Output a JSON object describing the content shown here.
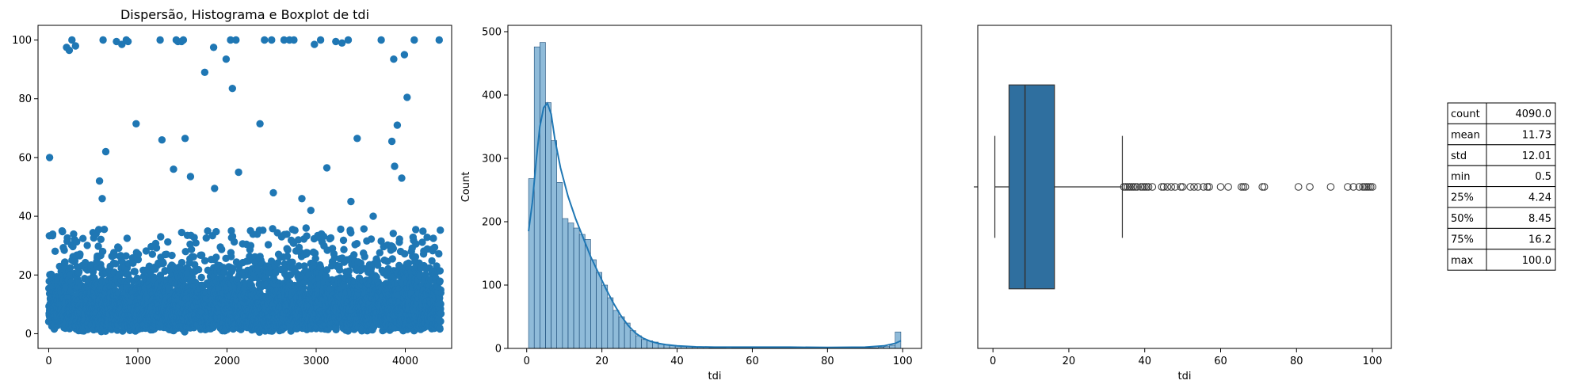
{
  "chart_data": [
    {
      "type": "scatter",
      "title": "Dispersão, Histograma e Boxplot de tdi",
      "xlabel": "",
      "ylabel": "",
      "xlim": [
        -120,
        4520
      ],
      "ylim": [
        -5,
        105
      ],
      "xticks": [
        0,
        1000,
        2000,
        3000,
        4000
      ],
      "yticks": [
        0,
        20,
        40,
        60,
        80,
        100
      ],
      "n_points": 4090,
      "color": "#1f77b4",
      "high_points": [
        [
          10,
          60
        ],
        [
          150,
          35
        ],
        [
          200,
          97.5
        ],
        [
          230,
          96.5
        ],
        [
          260,
          100
        ],
        [
          300,
          98
        ],
        [
          570,
          52
        ],
        [
          600,
          46
        ],
        [
          610,
          100
        ],
        [
          640,
          62
        ],
        [
          760,
          99.5
        ],
        [
          820,
          98.5
        ],
        [
          870,
          100
        ],
        [
          890,
          99.5
        ],
        [
          980,
          71.5
        ],
        [
          1250,
          100
        ],
        [
          1270,
          66
        ],
        [
          1400,
          56
        ],
        [
          1430,
          100
        ],
        [
          1450,
          99.5
        ],
        [
          1490,
          99.5
        ],
        [
          1510,
          100
        ],
        [
          1530,
          66.5
        ],
        [
          1590,
          53.5
        ],
        [
          1750,
          89
        ],
        [
          1850,
          97.5
        ],
        [
          1860,
          49.5
        ],
        [
          1990,
          93.5
        ],
        [
          2040,
          100
        ],
        [
          2060,
          83.5
        ],
        [
          2100,
          100
        ],
        [
          2130,
          55
        ],
        [
          2370,
          71.5
        ],
        [
          2420,
          100
        ],
        [
          2500,
          100
        ],
        [
          2520,
          48
        ],
        [
          2640,
          100
        ],
        [
          2700,
          100
        ],
        [
          2750,
          100
        ],
        [
          2840,
          46
        ],
        [
          2940,
          42
        ],
        [
          2980,
          98.5
        ],
        [
          3050,
          100
        ],
        [
          3120,
          56.5
        ],
        [
          3220,
          99.5
        ],
        [
          3290,
          99
        ],
        [
          3360,
          100
        ],
        [
          3390,
          45
        ],
        [
          3460,
          66.5
        ],
        [
          3640,
          40
        ],
        [
          3730,
          100
        ],
        [
          3850,
          65.5
        ],
        [
          3870,
          93.5
        ],
        [
          3880,
          57
        ],
        [
          3910,
          71
        ],
        [
          3960,
          53
        ],
        [
          3990,
          95
        ],
        [
          4020,
          80.5
        ],
        [
          4100,
          100
        ],
        [
          4380,
          100
        ]
      ]
    },
    {
      "type": "bar",
      "title": "",
      "xlabel": "tdi",
      "ylabel": "Count",
      "xlim": [
        -5,
        105
      ],
      "ylim": [
        0,
        510
      ],
      "xticks": [
        0,
        20,
        40,
        60,
        80,
        100
      ],
      "yticks": [
        0,
        100,
        200,
        300,
        400,
        500
      ],
      "bin_width": 1.5,
      "bin_start": 0.5,
      "counts": [
        268,
        476,
        483,
        388,
        328,
        262,
        205,
        198,
        190,
        180,
        172,
        140,
        120,
        100,
        80,
        60,
        50,
        40,
        28,
        20,
        14,
        12,
        10,
        7,
        6,
        5,
        4,
        3,
        3,
        2,
        2,
        2,
        1,
        1,
        1,
        2,
        1,
        1,
        1,
        1,
        1,
        1,
        1,
        1,
        1,
        1,
        1,
        1,
        1,
        1,
        1,
        1,
        1,
        1,
        1,
        1,
        1,
        1,
        1,
        1,
        1,
        1,
        2,
        3,
        5,
        26
      ],
      "kde": [
        [
          0.5,
          185
        ],
        [
          1.5,
          230
        ],
        [
          2.5,
          295
        ],
        [
          3.5,
          350
        ],
        [
          4.5,
          380
        ],
        [
          5.5,
          387
        ],
        [
          6.5,
          370
        ],
        [
          7.5,
          330
        ],
        [
          9,
          285
        ],
        [
          11,
          240
        ],
        [
          13,
          205
        ],
        [
          15,
          175
        ],
        [
          17,
          145
        ],
        [
          19,
          120
        ],
        [
          21,
          95
        ],
        [
          23,
          72
        ],
        [
          25,
          52
        ],
        [
          27,
          36
        ],
        [
          29,
          24
        ],
        [
          31,
          16
        ],
        [
          33,
          11
        ],
        [
          35,
          8
        ],
        [
          37,
          6
        ],
        [
          40,
          4
        ],
        [
          45,
          2.5
        ],
        [
          50,
          2
        ],
        [
          60,
          2
        ],
        [
          70,
          2
        ],
        [
          80,
          1.5
        ],
        [
          90,
          2
        ],
        [
          95,
          4
        ],
        [
          98,
          8
        ],
        [
          99.5,
          12
        ]
      ],
      "bar_color": "#1f77b4",
      "bar_alpha": 0.5
    },
    {
      "type": "box",
      "title": "",
      "xlabel": "tdi",
      "ylabel": "",
      "xlim": [
        -4,
        105
      ],
      "xticks": [
        0,
        20,
        40,
        60,
        80,
        100
      ],
      "whisker_low": 0.5,
      "q1": 4.24,
      "median": 8.45,
      "q3": 16.2,
      "whisker_high": 34.1,
      "outliers": [
        34.5,
        35,
        35.5,
        36,
        36.5,
        37,
        37.5,
        38,
        39,
        39.5,
        40,
        40.5,
        41,
        42,
        44.5,
        45,
        46,
        47,
        48,
        49.5,
        50,
        52,
        53,
        54,
        55.5,
        56.5,
        57,
        60,
        62,
        65.5,
        66,
        66.5,
        71,
        71.5,
        80.5,
        83.5,
        89,
        93.5,
        95,
        96.5,
        97.5,
        98,
        98.5,
        99,
        99.5,
        100
      ],
      "box_color": "#2f6f9f"
    }
  ],
  "stats_table": [
    {
      "label": "count",
      "value": "4090.0"
    },
    {
      "label": "mean",
      "value": "11.73"
    },
    {
      "label": "std",
      "value": "12.01"
    },
    {
      "label": "min",
      "value": "0.5"
    },
    {
      "label": "25%",
      "value": "4.24"
    },
    {
      "label": "50%",
      "value": "8.45"
    },
    {
      "label": "75%",
      "value": "16.2"
    },
    {
      "label": "max",
      "value": "100.0"
    }
  ]
}
